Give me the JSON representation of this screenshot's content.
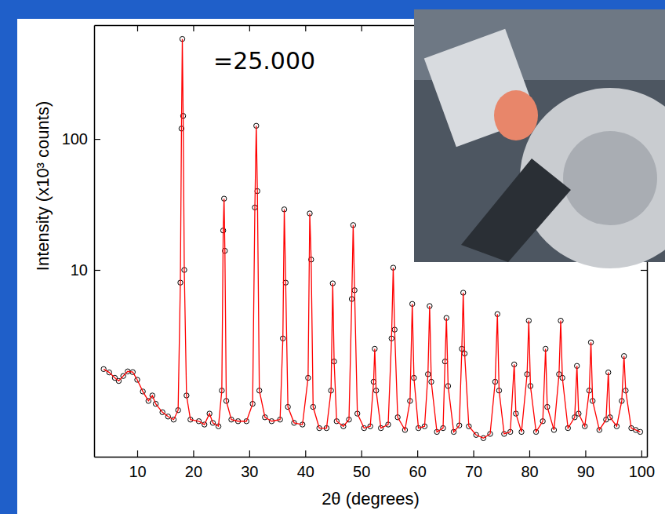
{
  "chart_data": {
    "type": "line",
    "annotation": "=25.000",
    "x_label": "2θ   (degrees)",
    "y_label": "Intensity (x10³ counts)",
    "log": "y",
    "grid": false,
    "xlim": [
      2.3,
      101
    ],
    "xticks": [
      10,
      20,
      30,
      40,
      50,
      60,
      70,
      80,
      90,
      100
    ],
    "ylim": [
      0.375,
      740
    ],
    "yticks": [
      10,
      100
    ],
    "x": [
      4,
      5,
      6,
      6.7,
      7.5,
      8.3,
      9.2,
      10,
      11,
      12,
      12.7,
      13.3,
      14.5,
      15.5,
      16.5,
      17.3,
      17.7,
      17.9,
      18.05,
      18.2,
      18.4,
      18.8,
      19.5,
      21,
      22,
      22.9,
      23.5,
      24.5,
      25.1,
      25.35,
      25.5,
      25.65,
      25.9,
      26.8,
      28,
      29.5,
      30.6,
      31,
      31.25,
      31.45,
      31.8,
      32.8,
      34,
      35.5,
      36,
      36.25,
      36.5,
      36.9,
      38,
      39.5,
      40.5,
      40.8,
      41.05,
      41.4,
      42.5,
      43.8,
      44.6,
      44.9,
      45.15,
      45.6,
      46.8,
      47.8,
      48.3,
      48.55,
      48.8,
      49.3,
      50.5,
      51.6,
      52.2,
      52.4,
      52.65,
      53.5,
      54.8,
      55.4,
      55.7,
      55.95,
      56.5,
      57.8,
      58.7,
      59.1,
      59.4,
      60.2,
      61.3,
      61.9,
      62.2,
      62.5,
      63.5,
      64.6,
      64.95,
      65.2,
      65.5,
      66.5,
      67.5,
      67.95,
      68.2,
      68.45,
      69.2,
      70.5,
      71.8,
      73,
      73.9,
      74.3,
      74.6,
      75.5,
      76.6,
      77.3,
      77.6,
      78.6,
      79.6,
      79.9,
      80.2,
      81.2,
      82.4,
      82.9,
      83.2,
      84.4,
      85.3,
      85.6,
      85.9,
      86.9,
      88.1,
      88.5,
      88.8,
      89.9,
      90.7,
      91,
      91.3,
      92.5,
      93.7,
      94.1,
      94.4,
      95.6,
      96.5,
      96.9,
      97.2,
      98.2,
      99,
      99.8
    ],
    "series": [
      {
        "type": "scatter",
        "marker": "circle",
        "color": "#000000",
        "values": [
          1.75,
          1.65,
          1.5,
          1.42,
          1.55,
          1.68,
          1.66,
          1.45,
          1.18,
          1.0,
          1.1,
          0.95,
          0.82,
          0.76,
          0.72,
          0.85,
          8,
          120,
          580,
          150,
          10,
          1.1,
          0.72,
          0.7,
          0.66,
          0.8,
          0.68,
          0.64,
          1.2,
          20,
          35,
          14,
          1.0,
          0.72,
          0.7,
          0.7,
          0.95,
          30,
          126,
          40,
          1.2,
          0.75,
          0.7,
          0.72,
          3,
          29,
          8,
          0.9,
          0.68,
          0.66,
          1.5,
          27,
          12,
          0.9,
          0.62,
          0.62,
          1.2,
          7.9,
          2,
          0.7,
          0.64,
          0.72,
          6,
          22,
          7,
          0.8,
          0.62,
          0.64,
          1.4,
          2.5,
          1.2,
          0.62,
          0.66,
          3,
          10.4,
          3.5,
          0.75,
          0.6,
          1.0,
          5.5,
          1.5,
          0.62,
          0.64,
          1.6,
          5.3,
          1.4,
          0.58,
          0.62,
          2,
          4.3,
          1.3,
          0.58,
          0.65,
          2.5,
          6.7,
          2.3,
          0.64,
          0.55,
          0.52,
          0.56,
          1.4,
          4.6,
          1.2,
          0.56,
          0.58,
          1.9,
          0.8,
          0.58,
          1.6,
          4.1,
          1.3,
          0.58,
          0.7,
          2.5,
          0.9,
          0.6,
          1.6,
          4.1,
          1.5,
          0.62,
          0.75,
          1.85,
          0.8,
          0.64,
          1.2,
          2.8,
          1.0,
          0.6,
          0.72,
          1.65,
          0.75,
          0.64,
          1.0,
          2.2,
          1.2,
          0.62,
          0.6,
          0.58
        ]
      },
      {
        "type": "line",
        "line_style": "solid",
        "color": "#ff0000",
        "values": [
          1.75,
          1.65,
          1.5,
          1.42,
          1.55,
          1.68,
          1.66,
          1.45,
          1.18,
          1.0,
          1.1,
          0.95,
          0.82,
          0.76,
          0.72,
          0.85,
          8,
          120,
          580,
          150,
          10,
          1.1,
          0.72,
          0.7,
          0.66,
          0.8,
          0.68,
          0.64,
          1.2,
          20,
          35,
          14,
          1.0,
          0.72,
          0.7,
          0.7,
          0.95,
          30,
          126,
          40,
          1.2,
          0.75,
          0.7,
          0.72,
          3,
          29,
          8,
          0.9,
          0.68,
          0.66,
          1.5,
          27,
          12,
          0.9,
          0.62,
          0.62,
          1.2,
          7.9,
          2,
          0.7,
          0.64,
          0.72,
          6,
          22,
          7,
          0.8,
          0.62,
          0.64,
          1.4,
          2.5,
          1.2,
          0.62,
          0.66,
          3,
          10.4,
          3.5,
          0.75,
          0.6,
          1.0,
          5.5,
          1.5,
          0.62,
          0.64,
          1.6,
          5.3,
          1.4,
          0.58,
          0.62,
          2,
          4.3,
          1.3,
          0.58,
          0.65,
          2.5,
          6.7,
          2.3,
          0.64,
          0.55,
          0.52,
          0.56,
          1.4,
          4.6,
          1.2,
          0.56,
          0.58,
          1.9,
          0.8,
          0.58,
          1.6,
          4.1,
          1.3,
          0.58,
          0.7,
          2.5,
          0.9,
          0.6,
          1.6,
          4.1,
          1.5,
          0.62,
          0.75,
          1.85,
          0.8,
          0.64,
          1.2,
          2.8,
          1.0,
          0.6,
          0.72,
          1.65,
          0.75,
          0.64,
          1.0,
          2.2,
          1.2,
          0.62,
          0.6,
          0.58
        ]
      }
    ]
  }
}
